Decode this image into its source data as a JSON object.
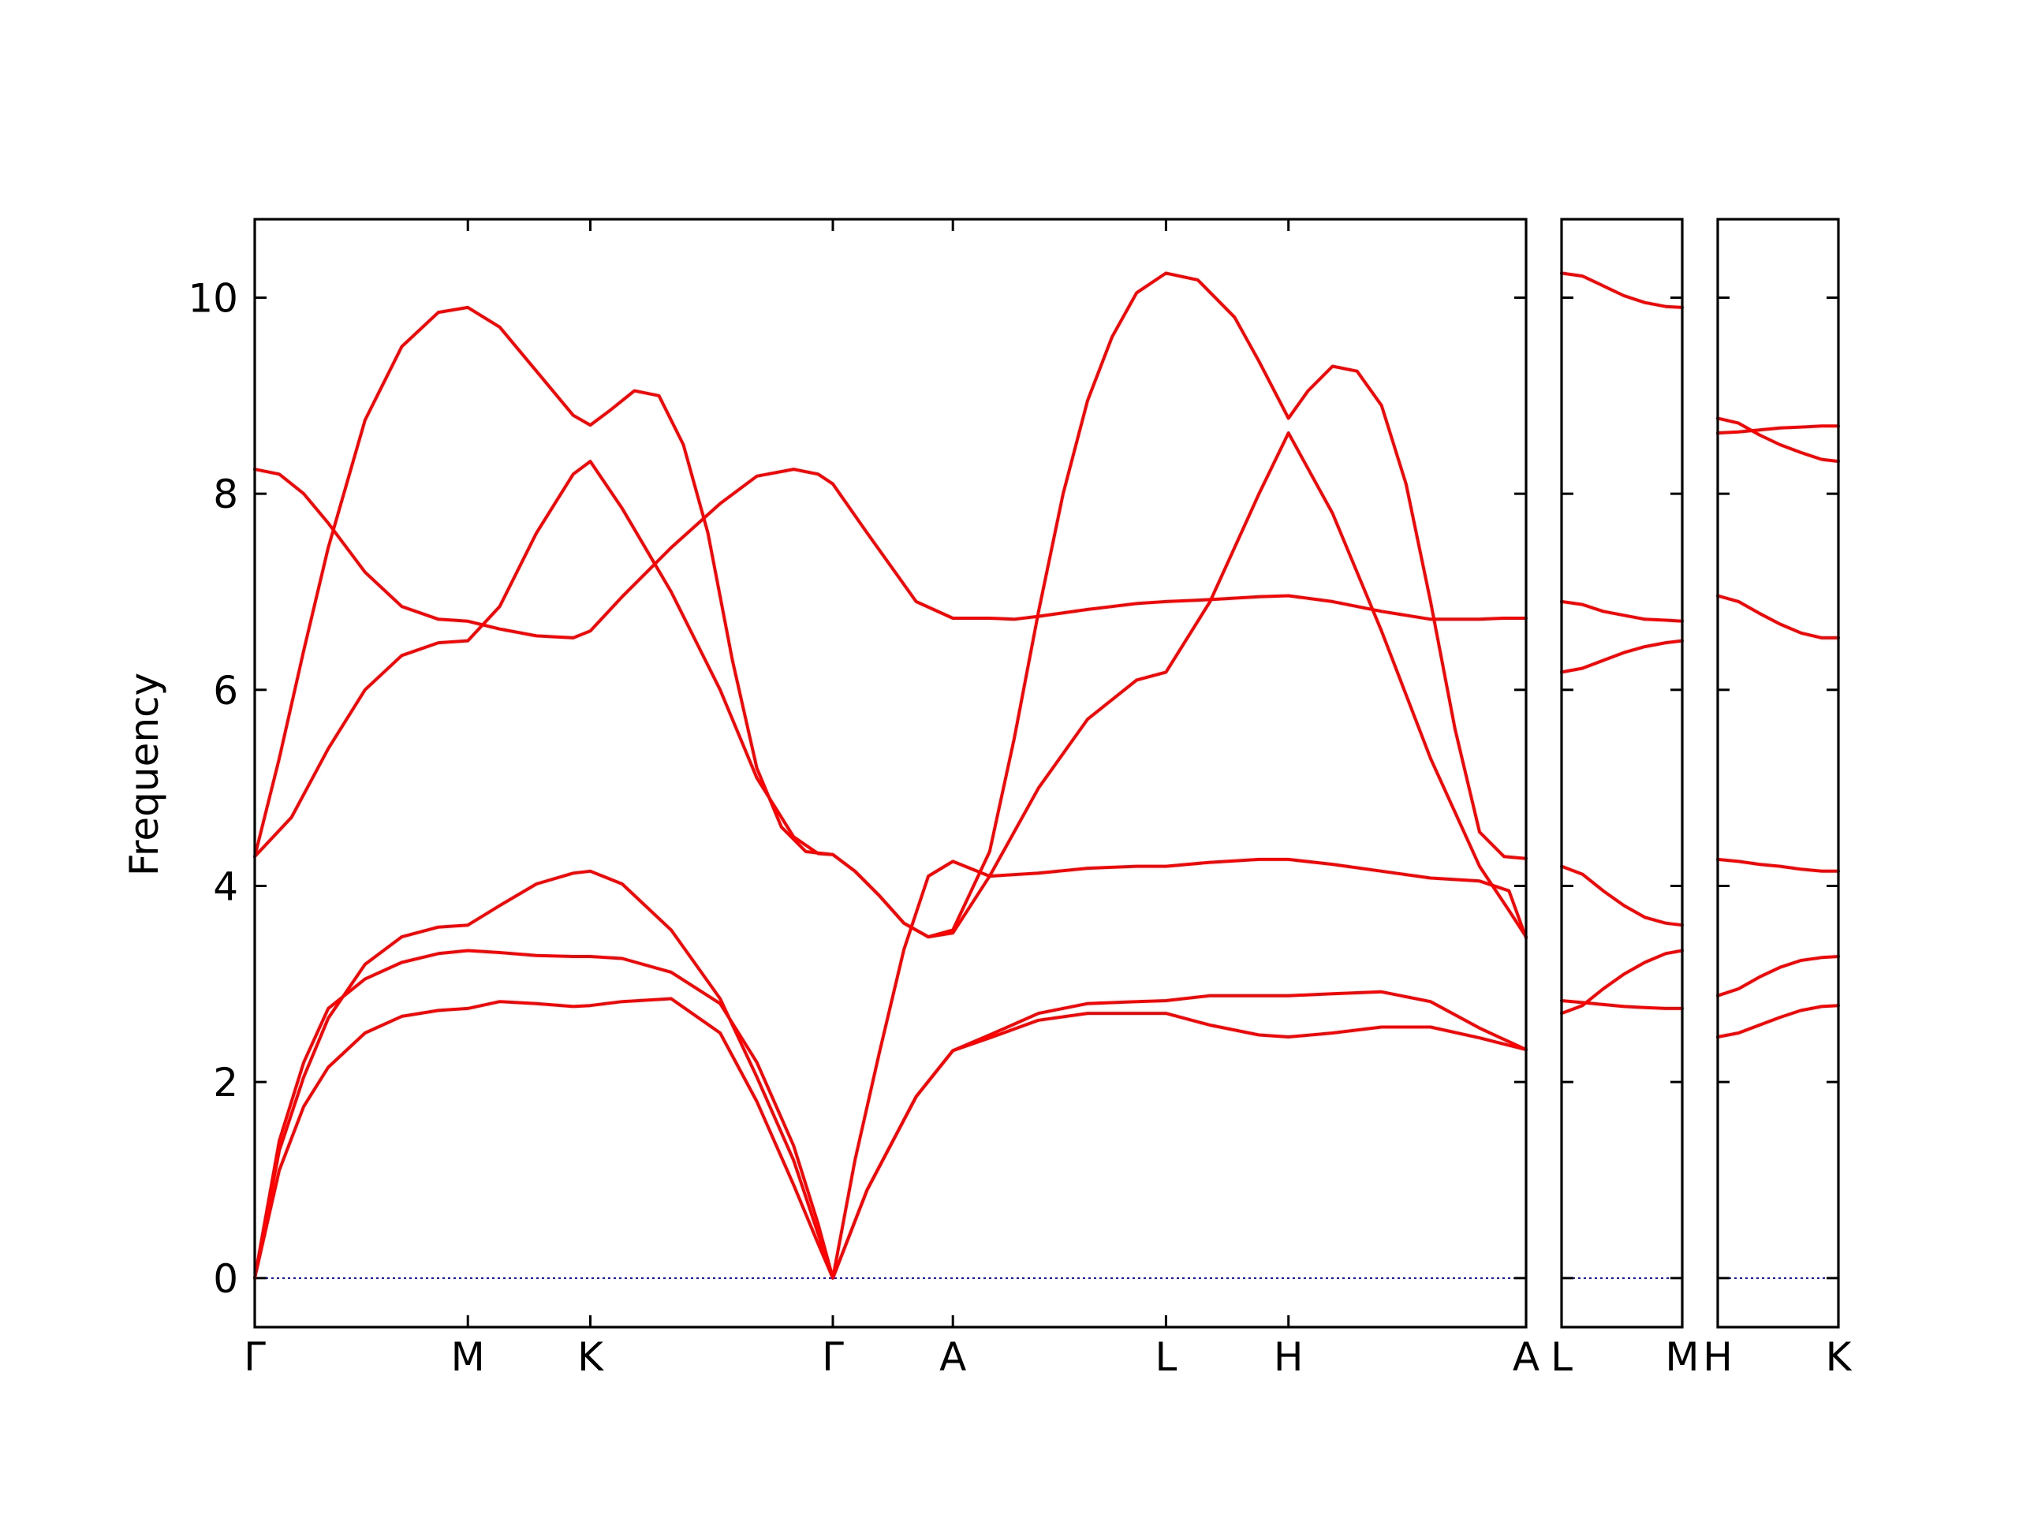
{
  "chart_data": {
    "type": "line",
    "ylabel": "Frequency",
    "ylim": [
      -0.5,
      10.8
    ],
    "yticks": [
      "0",
      "2",
      "4",
      "6",
      "8",
      "10"
    ],
    "band_color": "#ff0000",
    "zero_line_color": "#0000cc",
    "grid": false,
    "panels": [
      {
        "xrange": [
          0,
          5.19
        ],
        "ticks": [
          {
            "x": 0,
            "label": "Γ"
          },
          {
            "x": 0.87,
            "label": "M"
          },
          {
            "x": 1.37,
            "label": "K"
          },
          {
            "x": 2.36,
            "label": "Γ"
          },
          {
            "x": 2.85,
            "label": "A"
          },
          {
            "x": 3.72,
            "label": "L"
          },
          {
            "x": 4.22,
            "label": "H"
          },
          {
            "x": 5.19,
            "label": "A"
          }
        ],
        "bands": [
          {
            "x": [
              0,
              0.1,
              0.2,
              0.3,
              0.45,
              0.6,
              0.75,
              0.87,
              1.0,
              1.15,
              1.3,
              1.37,
              1.5,
              1.7,
              1.9,
              2.05,
              2.2,
              2.3,
              2.36,
              2.5,
              2.7,
              2.85,
              3.0,
              3.2,
              3.4,
              3.6,
              3.72,
              3.9,
              4.1,
              4.22,
              4.4,
              4.6,
              4.8,
              5.0,
              5.19
            ],
            "y": [
              0,
              1.1,
              1.75,
              2.15,
              2.5,
              2.67,
              2.73,
              2.75,
              2.82,
              2.8,
              2.77,
              2.78,
              2.82,
              2.85,
              2.5,
              1.8,
              0.95,
              0.35,
              0,
              0.9,
              1.85,
              2.32,
              2.45,
              2.63,
              2.7,
              2.7,
              2.7,
              2.58,
              2.48,
              2.46,
              2.5,
              2.56,
              2.56,
              2.45,
              2.33
            ]
          },
          {
            "x": [
              0,
              0.1,
              0.2,
              0.3,
              0.45,
              0.6,
              0.75,
              0.87,
              1.0,
              1.15,
              1.3,
              1.37,
              1.5,
              1.7,
              1.9,
              2.05,
              2.2,
              2.3,
              2.36,
              2.5,
              2.7,
              2.85,
              3.0,
              3.2,
              3.4,
              3.6,
              3.72,
              3.9,
              4.1,
              4.22,
              4.4,
              4.6,
              4.8,
              5.0,
              5.19
            ],
            "y": [
              0,
              1.4,
              2.2,
              2.75,
              3.05,
              3.22,
              3.31,
              3.34,
              3.32,
              3.29,
              3.28,
              3.28,
              3.26,
              3.12,
              2.8,
              2.2,
              1.35,
              0.55,
              0,
              0.9,
              1.85,
              2.32,
              2.48,
              2.7,
              2.8,
              2.82,
              2.83,
              2.88,
              2.88,
              2.88,
              2.9,
              2.92,
              2.82,
              2.55,
              2.33
            ]
          },
          {
            "x": [
              0,
              0.1,
              0.2,
              0.3,
              0.45,
              0.6,
              0.75,
              0.87,
              1.0,
              1.15,
              1.3,
              1.37,
              1.5,
              1.7,
              1.9,
              2.05,
              2.2,
              2.3,
              2.36,
              2.45,
              2.55,
              2.65,
              2.75,
              2.85,
              3.0,
              3.2,
              3.4,
              3.6,
              3.72,
              3.9,
              4.1,
              4.22,
              4.4,
              4.6,
              4.8,
              5.0,
              5.12,
              5.19
            ],
            "y": [
              0,
              1.3,
              2.05,
              2.65,
              3.2,
              3.48,
              3.58,
              3.6,
              3.8,
              4.02,
              4.13,
              4.15,
              4.02,
              3.55,
              2.85,
              2.05,
              1.2,
              0.45,
              0,
              1.2,
              2.3,
              3.35,
              4.1,
              4.25,
              4.1,
              4.13,
              4.18,
              4.2,
              4.2,
              4.24,
              4.27,
              4.27,
              4.22,
              4.15,
              4.08,
              4.05,
              3.95,
              3.47
            ]
          },
          {
            "x": [
              0,
              0.15,
              0.3,
              0.45,
              0.6,
              0.75,
              0.87,
              1.0,
              1.15,
              1.3,
              1.37,
              1.5,
              1.7,
              1.9,
              2.05,
              2.2,
              2.3,
              2.36,
              2.45,
              2.55,
              2.65,
              2.75,
              2.85,
              3.0,
              3.2,
              3.4,
              3.6,
              3.72,
              3.9,
              4.1,
              4.22,
              4.4,
              4.6,
              4.8,
              5.0,
              5.12,
              5.19
            ],
            "y": [
              4.3,
              4.7,
              5.4,
              6.0,
              6.35,
              6.48,
              6.5,
              6.85,
              7.6,
              8.2,
              8.33,
              7.85,
              7.0,
              6.0,
              5.1,
              4.5,
              4.33,
              4.32,
              4.15,
              3.9,
              3.62,
              3.48,
              3.52,
              4.1,
              5.0,
              5.7,
              6.1,
              6.18,
              6.9,
              8.0,
              8.62,
              7.8,
              6.6,
              5.3,
              4.2,
              3.75,
              3.48
            ]
          },
          {
            "x": [
              0,
              0.1,
              0.2,
              0.3,
              0.45,
              0.6,
              0.75,
              0.87,
              1.0,
              1.15,
              1.3,
              1.37,
              1.5,
              1.7,
              1.9,
              2.05,
              2.2,
              2.3,
              2.36,
              2.5,
              2.7,
              2.85,
              3.0,
              3.1,
              3.2,
              3.4,
              3.6,
              3.72,
              3.9,
              4.1,
              4.22,
              4.4,
              4.6,
              4.8,
              5.0,
              5.1,
              5.19
            ],
            "y": [
              8.25,
              8.2,
              8.0,
              7.7,
              7.2,
              6.85,
              6.72,
              6.7,
              6.62,
              6.55,
              6.53,
              6.6,
              6.95,
              7.45,
              7.9,
              8.18,
              8.25,
              8.2,
              8.1,
              7.6,
              6.9,
              6.73,
              6.73,
              6.72,
              6.75,
              6.82,
              6.88,
              6.9,
              6.92,
              6.95,
              6.96,
              6.9,
              6.8,
              6.72,
              6.72,
              6.73,
              6.73
            ]
          },
          {
            "x": [
              0,
              0.1,
              0.2,
              0.3,
              0.45,
              0.6,
              0.75,
              0.87,
              1.0,
              1.15,
              1.3,
              1.37,
              1.45,
              1.55,
              1.65,
              1.75,
              1.85,
              1.95,
              2.05,
              2.15,
              2.25,
              2.36,
              2.45,
              2.55,
              2.65,
              2.75,
              2.85,
              3.0,
              3.1,
              3.2,
              3.3,
              3.4,
              3.5,
              3.6,
              3.72,
              3.85,
              4.0,
              4.1,
              4.22,
              4.3,
              4.4,
              4.5,
              4.6,
              4.7,
              4.8,
              4.9,
              5.0,
              5.1,
              5.19
            ],
            "y": [
              4.3,
              5.3,
              6.4,
              7.45,
              8.75,
              9.5,
              9.85,
              9.9,
              9.7,
              9.25,
              8.8,
              8.7,
              8.85,
              9.05,
              9.0,
              8.5,
              7.6,
              6.3,
              5.2,
              4.6,
              4.35,
              4.32,
              4.15,
              3.9,
              3.62,
              3.48,
              3.55,
              4.35,
              5.5,
              6.8,
              8.0,
              8.95,
              9.6,
              10.05,
              10.25,
              10.18,
              9.8,
              9.35,
              8.77,
              9.05,
              9.3,
              9.25,
              8.9,
              8.1,
              6.9,
              5.6,
              4.55,
              4.3,
              4.28
            ]
          }
        ]
      },
      {
        "xrange": [
          0,
          0.87
        ],
        "ticks": [
          {
            "x": 0,
            "label": "L"
          },
          {
            "x": 0.87,
            "label": "M"
          }
        ],
        "bands": [
          {
            "x": [
              0,
              0.15,
              0.3,
              0.45,
              0.6,
              0.75,
              0.87
            ],
            "y": [
              2.83,
              2.81,
              2.79,
              2.77,
              2.76,
              2.75,
              2.75
            ]
          },
          {
            "x": [
              0,
              0.15,
              0.3,
              0.45,
              0.6,
              0.75,
              0.87
            ],
            "y": [
              2.7,
              2.78,
              2.95,
              3.1,
              3.22,
              3.31,
              3.34
            ]
          },
          {
            "x": [
              0,
              0.15,
              0.3,
              0.45,
              0.6,
              0.75,
              0.87
            ],
            "y": [
              4.2,
              4.12,
              3.95,
              3.8,
              3.68,
              3.62,
              3.6
            ]
          },
          {
            "x": [
              0,
              0.15,
              0.3,
              0.45,
              0.6,
              0.75,
              0.87
            ],
            "y": [
              6.18,
              6.22,
              6.3,
              6.38,
              6.44,
              6.48,
              6.5
            ]
          },
          {
            "x": [
              0,
              0.15,
              0.3,
              0.45,
              0.6,
              0.75,
              0.87
            ],
            "y": [
              6.9,
              6.87,
              6.8,
              6.76,
              6.72,
              6.71,
              6.7
            ]
          },
          {
            "x": [
              0,
              0.15,
              0.3,
              0.45,
              0.6,
              0.75,
              0.87
            ],
            "y": [
              10.25,
              10.22,
              10.12,
              10.02,
              9.95,
              9.91,
              9.9
            ]
          }
        ]
      },
      {
        "xrange": [
          0,
          0.87
        ],
        "ticks": [
          {
            "x": 0,
            "label": "H"
          },
          {
            "x": 0.87,
            "label": "K"
          }
        ],
        "bands": [
          {
            "x": [
              0,
              0.15,
              0.3,
              0.45,
              0.6,
              0.75,
              0.87
            ],
            "y": [
              2.46,
              2.5,
              2.58,
              2.66,
              2.73,
              2.77,
              2.78
            ]
          },
          {
            "x": [
              0,
              0.15,
              0.3,
              0.45,
              0.6,
              0.75,
              0.87
            ],
            "y": [
              2.88,
              2.95,
              3.07,
              3.17,
              3.24,
              3.27,
              3.28
            ]
          },
          {
            "x": [
              0,
              0.15,
              0.3,
              0.45,
              0.6,
              0.75,
              0.87
            ],
            "y": [
              4.27,
              4.25,
              4.22,
              4.2,
              4.17,
              4.15,
              4.15
            ]
          },
          {
            "x": [
              0,
              0.15,
              0.3,
              0.45,
              0.6,
              0.75,
              0.87
            ],
            "y": [
              6.96,
              6.9,
              6.78,
              6.67,
              6.58,
              6.53,
              6.53
            ]
          },
          {
            "x": [
              0,
              0.15,
              0.3,
              0.45,
              0.6,
              0.75,
              0.87
            ],
            "y": [
              8.62,
              8.63,
              8.65,
              8.67,
              8.68,
              8.69,
              8.69
            ]
          },
          {
            "x": [
              0,
              0.15,
              0.3,
              0.45,
              0.6,
              0.75,
              0.87
            ],
            "y": [
              8.77,
              8.72,
              8.6,
              8.5,
              8.42,
              8.35,
              8.33
            ]
          }
        ]
      }
    ]
  }
}
